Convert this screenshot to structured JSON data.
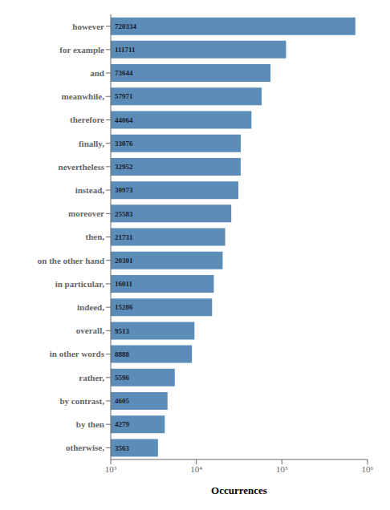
{
  "chart_data": {
    "type": "bar",
    "orientation": "horizontal",
    "xlabel": "Occurrences",
    "categories": [
      "however",
      "for example",
      "and",
      "meanwhile,",
      "therefore",
      "finally,",
      "nevertheless",
      "instead,",
      "moreover",
      "then,",
      "on the other hand",
      "in particular,",
      "indeed,",
      "overall,",
      "in other words",
      "rather,",
      "by contrast,",
      "by then",
      "otherwise,"
    ],
    "values": [
      720334,
      111711,
      73644,
      57971,
      44064,
      33076,
      32952,
      30973,
      25583,
      21731,
      20301,
      16011,
      15286,
      9513,
      8888,
      5596,
      4605,
      4279,
      3563
    ],
    "color": "#5b8db8",
    "log": "x",
    "xlim": [
      1000,
      1000000
    ],
    "xticks": [
      {
        "value": 1000,
        "label": "10³"
      },
      {
        "value": 10000,
        "label": "10⁴"
      },
      {
        "value": 100000,
        "label": "10⁵"
      },
      {
        "value": 1000000,
        "label": "10⁶"
      }
    ],
    "data_labels": true,
    "grid": false
  }
}
